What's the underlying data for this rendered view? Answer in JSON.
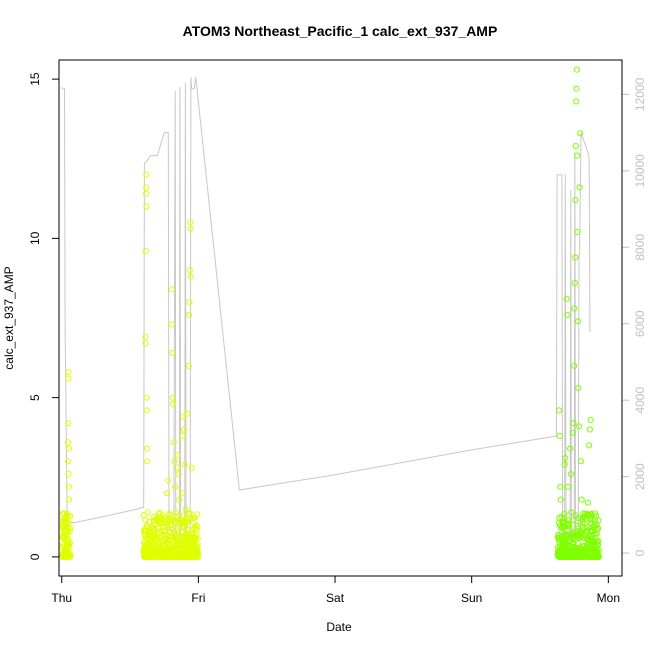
{
  "chart_data": {
    "type": "scatter",
    "title": "ATOM3 Northeast_Pacific_1 calc_ext_937_AMP",
    "xlabel": "Date",
    "ylabel": "calc_ext_937_AMP",
    "x_ticks": [
      "Thu",
      "Fri",
      "Sat",
      "Sun",
      "Mon"
    ],
    "xlim": [
      -0.02,
      4.1
    ],
    "ylim": [
      -0.6,
      15.6
    ],
    "y_ticks": [
      0,
      5,
      10,
      15
    ],
    "y2lim": [
      -600,
      12900
    ],
    "y2_ticks": [
      0,
      2000,
      4000,
      6000,
      8000,
      10000,
      12000
    ],
    "colors": {
      "points_early": "#dfff00",
      "points_late": "#80ff00",
      "secondary_line": "#c8c8c8",
      "frame": "#000000"
    },
    "series": [
      {
        "kind": "points",
        "axis": "left",
        "values": [
          [
            0.01,
            0.4
          ],
          [
            0.01,
            0.9
          ],
          [
            0.012,
            1.2
          ],
          [
            0.015,
            0.6
          ],
          [
            0.02,
            0.3
          ],
          [
            0.022,
            0.8
          ],
          [
            0.025,
            0.2
          ],
          [
            0.028,
            1.0
          ],
          [
            0.03,
            0.5
          ],
          [
            0.033,
            0.1
          ],
          [
            0.035,
            0.7
          ],
          [
            0.038,
            1.3
          ],
          [
            0.04,
            0.4
          ],
          [
            0.045,
            3.0
          ],
          [
            0.046,
            3.6
          ],
          [
            0.047,
            4.2
          ],
          [
            0.048,
            5.6
          ],
          [
            0.049,
            5.8
          ],
          [
            0.05,
            2.6
          ],
          [
            0.052,
            2.2
          ],
          [
            0.053,
            1.8
          ],
          [
            0.055,
            3.4
          ],
          [
            0.056,
            0.3
          ],
          [
            0.058,
            0.8
          ],
          [
            0.6,
            0.2
          ],
          [
            0.61,
            0.5
          ],
          [
            0.612,
            6.9
          ],
          [
            0.613,
            6.7
          ],
          [
            0.615,
            9.6
          ],
          [
            0.617,
            11.4
          ],
          [
            0.618,
            11.6
          ],
          [
            0.619,
            12.0
          ],
          [
            0.62,
            11.0
          ],
          [
            0.622,
            5.0
          ],
          [
            0.623,
            4.6
          ],
          [
            0.625,
            3.4
          ],
          [
            0.627,
            3.0
          ],
          [
            0.63,
            1.4
          ],
          [
            0.633,
            0.8
          ],
          [
            0.636,
            0.3
          ],
          [
            0.64,
            0.1
          ],
          [
            0.645,
            0.2
          ],
          [
            0.65,
            0.5
          ],
          [
            0.66,
            0.3
          ],
          [
            0.67,
            0.4
          ],
          [
            0.68,
            1.0
          ],
          [
            0.69,
            0.2
          ],
          [
            0.7,
            0.3
          ],
          [
            0.71,
            0.1
          ],
          [
            0.72,
            0.8
          ],
          [
            0.73,
            1.2
          ],
          [
            0.74,
            0.2
          ],
          [
            0.75,
            0.4
          ],
          [
            0.76,
            0.6
          ],
          [
            0.77,
            2.0
          ],
          [
            0.78,
            2.4
          ],
          [
            0.79,
            0.3
          ],
          [
            0.8,
            0.2
          ],
          [
            0.805,
            7.3
          ],
          [
            0.807,
            8.4
          ],
          [
            0.81,
            6.4
          ],
          [
            0.812,
            5.0
          ],
          [
            0.815,
            4.8
          ],
          [
            0.82,
            3.6
          ],
          [
            0.825,
            3.0
          ],
          [
            0.83,
            2.2
          ],
          [
            0.835,
            1.4
          ],
          [
            0.84,
            0.6
          ],
          [
            0.845,
            2.8
          ],
          [
            0.85,
            3.2
          ],
          [
            0.855,
            2.6
          ],
          [
            0.86,
            1.8
          ],
          [
            0.87,
            0.4
          ],
          [
            0.88,
            2.0
          ],
          [
            0.885,
            3.8
          ],
          [
            0.89,
            4.4
          ],
          [
            0.895,
            4.0
          ],
          [
            0.9,
            2.9
          ],
          [
            0.905,
            1.5
          ],
          [
            0.91,
            0.3
          ],
          [
            0.915,
            0.7
          ],
          [
            0.92,
            4.5
          ],
          [
            0.93,
            6.0
          ],
          [
            0.932,
            7.6
          ],
          [
            0.935,
            8.0
          ],
          [
            0.937,
            9.0
          ],
          [
            0.94,
            10.5
          ],
          [
            0.942,
            10.3
          ],
          [
            0.945,
            8.8
          ],
          [
            0.95,
            2.8
          ],
          [
            0.955,
            1.2
          ],
          [
            0.96,
            0.5
          ],
          [
            0.97,
            0.9
          ],
          [
            0.975,
            0.3
          ],
          [
            0.98,
            0.6
          ]
        ]
      },
      {
        "kind": "points",
        "axis": "left",
        "values": [
          [
            3.64,
            4.6
          ],
          [
            3.645,
            3.8
          ],
          [
            3.65,
            2.2
          ],
          [
            3.652,
            1.8
          ],
          [
            3.655,
            0.9
          ],
          [
            3.66,
            0.3
          ],
          [
            3.665,
            0.1
          ],
          [
            3.67,
            0.6
          ],
          [
            3.675,
            1.2
          ],
          [
            3.68,
            2.9
          ],
          [
            3.685,
            3.1
          ],
          [
            3.69,
            0.4
          ],
          [
            3.695,
            8.1
          ],
          [
            3.7,
            7.6
          ],
          [
            3.705,
            2.2
          ],
          [
            3.71,
            1.0
          ],
          [
            3.715,
            0.5
          ],
          [
            3.72,
            3.4
          ],
          [
            3.725,
            2.6
          ],
          [
            3.73,
            1.4
          ],
          [
            3.735,
            0.2
          ],
          [
            3.74,
            3.9
          ],
          [
            3.745,
            4.2
          ],
          [
            3.75,
            6.0
          ],
          [
            3.752,
            7.8
          ],
          [
            3.755,
            8.6
          ],
          [
            3.758,
            9.4
          ],
          [
            3.76,
            11.2
          ],
          [
            3.762,
            12.9
          ],
          [
            3.765,
            14.3
          ],
          [
            3.767,
            14.7
          ],
          [
            3.77,
            15.3
          ],
          [
            3.772,
            12.6
          ],
          [
            3.775,
            10.2
          ],
          [
            3.778,
            7.4
          ],
          [
            3.78,
            5.3
          ],
          [
            3.785,
            4.1
          ],
          [
            3.79,
            11.6
          ],
          [
            3.795,
            13.3
          ],
          [
            3.8,
            3.0
          ],
          [
            3.805,
            1.8
          ],
          [
            3.81,
            1.2
          ],
          [
            3.82,
            0.6
          ],
          [
            3.83,
            0.9
          ],
          [
            3.84,
            0.3
          ],
          [
            3.85,
            1.7
          ],
          [
            3.86,
            3.5
          ],
          [
            3.865,
            4.0
          ],
          [
            3.87,
            4.3
          ],
          [
            3.875,
            0.8
          ],
          [
            3.88,
            0.2
          ],
          [
            3.89,
            0.5
          ],
          [
            3.9,
            1.0
          ],
          [
            3.91,
            0.4
          ]
        ]
      },
      {
        "kind": "line",
        "axis": "right",
        "values": [
          [
            0.0,
            12200
          ],
          [
            0.005,
            12150
          ],
          [
            0.02,
            12150
          ],
          [
            0.025,
            6000
          ],
          [
            0.04,
            800
          ],
          [
            0.05,
            800
          ],
          [
            0.1,
            800
          ],
          [
            0.3,
            950
          ],
          [
            0.55,
            1150
          ],
          [
            0.6,
            1200
          ],
          [
            0.605,
            10200
          ],
          [
            0.62,
            10250
          ],
          [
            0.65,
            10400
          ],
          [
            0.7,
            10400
          ],
          [
            0.75,
            11000
          ],
          [
            0.78,
            11000
          ],
          [
            0.785,
            600
          ],
          [
            0.82,
            600
          ],
          [
            0.83,
            12100
          ],
          [
            0.835,
            400
          ],
          [
            0.86,
            400
          ],
          [
            0.865,
            12200
          ],
          [
            0.87,
            400
          ],
          [
            0.9,
            400
          ],
          [
            0.905,
            12300
          ],
          [
            0.91,
            400
          ],
          [
            0.94,
            400
          ],
          [
            0.945,
            12450
          ],
          [
            0.95,
            12150
          ],
          [
            0.96,
            12150
          ],
          [
            0.97,
            12150
          ],
          [
            0.98,
            12450
          ],
          [
            0.99,
            12150
          ],
          [
            1.3,
            1650
          ],
          [
            2.0,
            2050
          ],
          [
            3.0,
            2700
          ],
          [
            3.6,
            3050
          ],
          [
            3.62,
            3050
          ],
          [
            3.625,
            9900
          ],
          [
            3.66,
            9900
          ],
          [
            3.665,
            400
          ],
          [
            3.68,
            400
          ],
          [
            3.685,
            9900
          ],
          [
            3.69,
            400
          ],
          [
            3.72,
            400
          ],
          [
            3.725,
            9500
          ],
          [
            3.73,
            400
          ],
          [
            3.75,
            400
          ],
          [
            3.755,
            10500
          ],
          [
            3.76,
            400
          ],
          [
            3.78,
            400
          ],
          [
            3.785,
            7800
          ],
          [
            3.79,
            7800
          ],
          [
            3.8,
            11000
          ],
          [
            3.82,
            10800
          ],
          [
            3.85,
            10500
          ],
          [
            3.86,
            10300
          ],
          [
            3.865,
            5800
          ],
          [
            3.87,
            5800
          ]
        ]
      }
    ]
  }
}
